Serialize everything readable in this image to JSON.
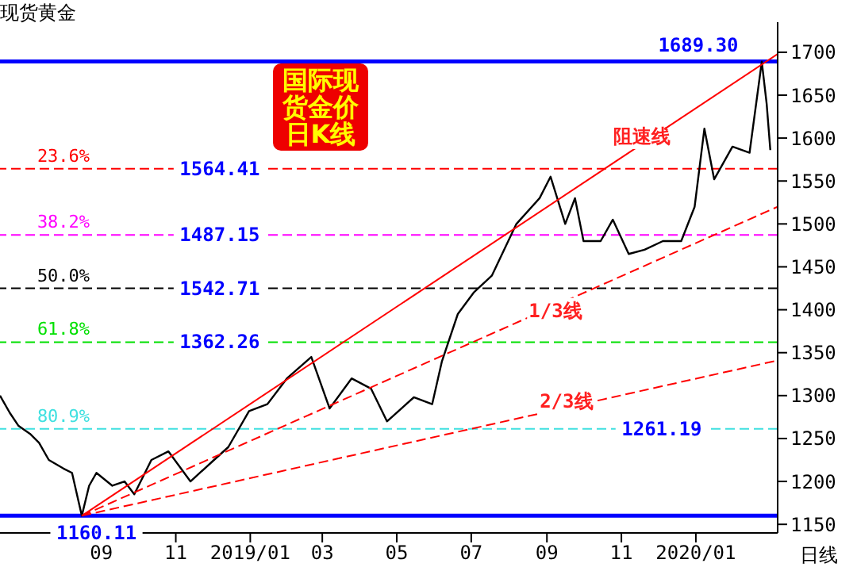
{
  "chart_data": {
    "type": "line",
    "title": "现货黄金",
    "xlim": [
      "2018-06-10",
      "2020-03-08"
    ],
    "xticks": [
      {
        "value": "2018-09-01",
        "label": "09"
      },
      {
        "value": "2018-11-01",
        "label": "11"
      },
      {
        "value": "2019-01-01",
        "label": "2019/01"
      },
      {
        "value": "2019-03-01",
        "label": "03"
      },
      {
        "value": "2019-05-01",
        "label": "05"
      },
      {
        "value": "2019-07-01",
        "label": "07"
      },
      {
        "value": "2019-09-01",
        "label": "09"
      },
      {
        "value": "2019-11-01",
        "label": "11"
      },
      {
        "value": "2020-01-01",
        "label": "2020/01"
      }
    ],
    "ylim": [
      1140,
      1735
    ],
    "yticks": [
      1150,
      1200,
      1250,
      1300,
      1350,
      1400,
      1450,
      1500,
      1550,
      1600,
      1650,
      1700
    ],
    "grid": false,
    "legend": false,
    "series": [
      {
        "color": "#000000",
        "line_style": "solid",
        "x": [
          "2018-06-10",
          "2018-06-18",
          "2018-06-25",
          "2018-07-05",
          "2018-07-12",
          "2018-07-20",
          "2018-08-01",
          "2018-08-08",
          "2018-08-16",
          "2018-08-22",
          "2018-08-28",
          "2018-09-10",
          "2018-09-20",
          "2018-09-28",
          "2018-10-12",
          "2018-10-26",
          "2018-11-13",
          "2018-11-30",
          "2018-12-14",
          "2018-12-31",
          "2019-01-15",
          "2019-01-31",
          "2019-02-20",
          "2019-03-07",
          "2019-03-25",
          "2019-04-10",
          "2019-04-23",
          "2019-05-15",
          "2019-05-30",
          "2019-06-07",
          "2019-06-20",
          "2019-07-03",
          "2019-07-18",
          "2019-08-07",
          "2019-08-26",
          "2019-09-04",
          "2019-09-16",
          "2019-09-24",
          "2019-10-01",
          "2019-10-15",
          "2019-10-25",
          "2019-11-07",
          "2019-11-20",
          "2019-12-05",
          "2019-12-20",
          "2019-12-31",
          "2020-01-08",
          "2020-01-16",
          "2020-01-31",
          "2020-02-14",
          "2020-02-24",
          "2020-02-28",
          "2020-03-02"
        ],
        "values": [
          1300,
          1280,
          1265,
          1255,
          1245,
          1225,
          1215,
          1210,
          1160,
          1195,
          1210,
          1195,
          1200,
          1185,
          1225,
          1235,
          1200,
          1222,
          1240,
          1282,
          1290,
          1320,
          1345,
          1285,
          1320,
          1308,
          1270,
          1298,
          1290,
          1340,
          1395,
          1420,
          1440,
          1500,
          1530,
          1555,
          1500,
          1530,
          1480,
          1480,
          1505,
          1465,
          1470,
          1480,
          1480,
          1520,
          1611,
          1552,
          1590,
          1583,
          1689,
          1640,
          1586
        ]
      },
      {
        "color": "#ff0000",
        "line_style": "solid",
        "x": [
          "2018-08-16",
          "2020-03-08"
        ],
        "values": [
          1160,
          1698
        ]
      },
      {
        "color": "#ff0000",
        "line_style": "dashed",
        "x": [
          "2018-08-16",
          "2020-03-08"
        ],
        "values": [
          1160,
          1520
        ]
      },
      {
        "color": "#ff0000",
        "line_style": "dashed",
        "x": [
          "2018-08-16",
          "2020-03-08"
        ],
        "values": [
          1160,
          1341
        ]
      }
    ],
    "ref_lines": [
      {
        "axis": "y",
        "value": 1689.3,
        "color": "#0000ff",
        "line_style": "solid"
      },
      {
        "axis": "y",
        "value": 1564.41,
        "color": "#ff0000",
        "line_style": "dashed"
      },
      {
        "axis": "y",
        "value": 1487.15,
        "color": "#ff00ff",
        "line_style": "dashed"
      },
      {
        "axis": "y",
        "value": 1425,
        "color": "#000000",
        "line_style": "dashed"
      },
      {
        "axis": "y",
        "value": 1362.26,
        "color": "#00e000",
        "line_style": "dashed"
      },
      {
        "axis": "y",
        "value": 1261.19,
        "color": "#40e0e0",
        "line_style": "dashed"
      },
      {
        "axis": "y",
        "value": 1160.11,
        "color": "#0000ff",
        "line_style": "solid"
      }
    ],
    "annotations": [
      {
        "text": "1689.30",
        "x": "2020-01-03",
        "y": 1689.3
      },
      {
        "text": "1564.41",
        "x": "2018-12-07",
        "y": 1564.41
      },
      {
        "text": "1487.15",
        "x": "2018-12-07",
        "y": 1487.15
      },
      {
        "text": "1542.71",
        "x": "2018-12-07",
        "y": 1425
      },
      {
        "text": "1362.26",
        "x": "2018-12-07",
        "y": 1362.26
      },
      {
        "text": "1261.19",
        "x": "2019-12-04",
        "y": 1261.19
      },
      {
        "text": "1160.11",
        "x": "2018-08-28",
        "y": 1160.11
      },
      {
        "text": "阻速线",
        "x": "2019-11-18",
        "y": 1602
      },
      {
        "text": "1/3线",
        "x": "2019-09-08",
        "y": 1399
      },
      {
        "text": "2/3线",
        "x": "2019-09-17",
        "y": 1293
      },
      "国际现货金价日K线",
      "日线",
      {
        "text": "23.6%",
        "x": "2018-08-01",
        "y": 1564.41
      },
      {
        "text": "38.2%",
        "x": "2018-08-01",
        "y": 1487.15
      },
      {
        "text": "50.0%",
        "x": "2018-08-01",
        "y": 1425
      },
      {
        "text": "61.8%",
        "x": "2018-08-01",
        "y": 1362.26
      },
      {
        "text": "80.9%",
        "x": "2018-08-01",
        "y": 1261.19
      }
    ]
  }
}
